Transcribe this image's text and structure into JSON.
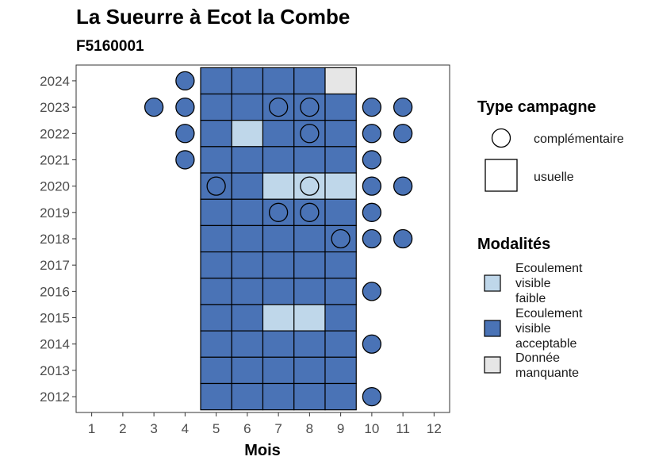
{
  "chart_data": {
    "type": "heatmap",
    "title": "La Sueurre à Ecot la Combe",
    "subtitle": "F5160001",
    "xlabel": "Mois",
    "ylabel": "",
    "x_ticks": [
      1,
      2,
      3,
      4,
      5,
      6,
      7,
      8,
      9,
      10,
      11,
      12
    ],
    "y_ticks": [
      2012,
      2013,
      2014,
      2015,
      2016,
      2017,
      2018,
      2019,
      2020,
      2021,
      2022,
      2023,
      2024
    ],
    "xlim": [
      0.5,
      12.5
    ],
    "ylim": [
      2011.4,
      2024.6
    ],
    "colors": {
      "Ecoulement visible faible": "#bfd7ea",
      "Ecoulement visible acceptable": "#4a73b6",
      "Donnée manquante": "#e6e6e6"
    },
    "usuelle_cells": [
      {
        "year": 2024,
        "month": 5,
        "mod": "Ecoulement visible acceptable"
      },
      {
        "year": 2024,
        "month": 6,
        "mod": "Ecoulement visible acceptable"
      },
      {
        "year": 2024,
        "month": 7,
        "mod": "Ecoulement visible acceptable"
      },
      {
        "year": 2024,
        "month": 8,
        "mod": "Ecoulement visible acceptable"
      },
      {
        "year": 2024,
        "month": 9,
        "mod": "Donnée manquante"
      },
      {
        "year": 2023,
        "month": 5,
        "mod": "Ecoulement visible acceptable"
      },
      {
        "year": 2023,
        "month": 6,
        "mod": "Ecoulement visible acceptable"
      },
      {
        "year": 2023,
        "month": 7,
        "mod": "Ecoulement visible acceptable"
      },
      {
        "year": 2023,
        "month": 8,
        "mod": "Ecoulement visible acceptable"
      },
      {
        "year": 2023,
        "month": 9,
        "mod": "Ecoulement visible acceptable"
      },
      {
        "year": 2022,
        "month": 5,
        "mod": "Ecoulement visible acceptable"
      },
      {
        "year": 2022,
        "month": 6,
        "mod": "Ecoulement visible faible"
      },
      {
        "year": 2022,
        "month": 7,
        "mod": "Ecoulement visible acceptable"
      },
      {
        "year": 2022,
        "month": 8,
        "mod": "Ecoulement visible acceptable"
      },
      {
        "year": 2022,
        "month": 9,
        "mod": "Ecoulement visible acceptable"
      },
      {
        "year": 2021,
        "month": 5,
        "mod": "Ecoulement visible acceptable"
      },
      {
        "year": 2021,
        "month": 6,
        "mod": "Ecoulement visible acceptable"
      },
      {
        "year": 2021,
        "month": 7,
        "mod": "Ecoulement visible acceptable"
      },
      {
        "year": 2021,
        "month": 8,
        "mod": "Ecoulement visible acceptable"
      },
      {
        "year": 2021,
        "month": 9,
        "mod": "Ecoulement visible acceptable"
      },
      {
        "year": 2020,
        "month": 5,
        "mod": "Ecoulement visible acceptable"
      },
      {
        "year": 2020,
        "month": 6,
        "mod": "Ecoulement visible acceptable"
      },
      {
        "year": 2020,
        "month": 7,
        "mod": "Ecoulement visible faible"
      },
      {
        "year": 2020,
        "month": 8,
        "mod": "Ecoulement visible faible"
      },
      {
        "year": 2020,
        "month": 9,
        "mod": "Ecoulement visible faible"
      },
      {
        "year": 2019,
        "month": 5,
        "mod": "Ecoulement visible acceptable"
      },
      {
        "year": 2019,
        "month": 6,
        "mod": "Ecoulement visible acceptable"
      },
      {
        "year": 2019,
        "month": 7,
        "mod": "Ecoulement visible acceptable"
      },
      {
        "year": 2019,
        "month": 8,
        "mod": "Ecoulement visible acceptable"
      },
      {
        "year": 2019,
        "month": 9,
        "mod": "Ecoulement visible acceptable"
      },
      {
        "year": 2018,
        "month": 5,
        "mod": "Ecoulement visible acceptable"
      },
      {
        "year": 2018,
        "month": 6,
        "mod": "Ecoulement visible acceptable"
      },
      {
        "year": 2018,
        "month": 7,
        "mod": "Ecoulement visible acceptable"
      },
      {
        "year": 2018,
        "month": 8,
        "mod": "Ecoulement visible acceptable"
      },
      {
        "year": 2018,
        "month": 9,
        "mod": "Ecoulement visible acceptable"
      },
      {
        "year": 2017,
        "month": 5,
        "mod": "Ecoulement visible acceptable"
      },
      {
        "year": 2017,
        "month": 6,
        "mod": "Ecoulement visible acceptable"
      },
      {
        "year": 2017,
        "month": 7,
        "mod": "Ecoulement visible acceptable"
      },
      {
        "year": 2017,
        "month": 8,
        "mod": "Ecoulement visible acceptable"
      },
      {
        "year": 2017,
        "month": 9,
        "mod": "Ecoulement visible acceptable"
      },
      {
        "year": 2016,
        "month": 5,
        "mod": "Ecoulement visible acceptable"
      },
      {
        "year": 2016,
        "month": 6,
        "mod": "Ecoulement visible acceptable"
      },
      {
        "year": 2016,
        "month": 7,
        "mod": "Ecoulement visible acceptable"
      },
      {
        "year": 2016,
        "month": 8,
        "mod": "Ecoulement visible acceptable"
      },
      {
        "year": 2016,
        "month": 9,
        "mod": "Ecoulement visible acceptable"
      },
      {
        "year": 2015,
        "month": 5,
        "mod": "Ecoulement visible acceptable"
      },
      {
        "year": 2015,
        "month": 6,
        "mod": "Ecoulement visible acceptable"
      },
      {
        "year": 2015,
        "month": 7,
        "mod": "Ecoulement visible faible"
      },
      {
        "year": 2015,
        "month": 8,
        "mod": "Ecoulement visible faible"
      },
      {
        "year": 2015,
        "month": 9,
        "mod": "Ecoulement visible acceptable"
      },
      {
        "year": 2014,
        "month": 5,
        "mod": "Ecoulement visible acceptable"
      },
      {
        "year": 2014,
        "month": 6,
        "mod": "Ecoulement visible acceptable"
      },
      {
        "year": 2014,
        "month": 7,
        "mod": "Ecoulement visible acceptable"
      },
      {
        "year": 2014,
        "month": 8,
        "mod": "Ecoulement visible acceptable"
      },
      {
        "year": 2014,
        "month": 9,
        "mod": "Ecoulement visible acceptable"
      },
      {
        "year": 2013,
        "month": 5,
        "mod": "Ecoulement visible acceptable"
      },
      {
        "year": 2013,
        "month": 6,
        "mod": "Ecoulement visible acceptable"
      },
      {
        "year": 2013,
        "month": 7,
        "mod": "Ecoulement visible acceptable"
      },
      {
        "year": 2013,
        "month": 8,
        "mod": "Ecoulement visible acceptable"
      },
      {
        "year": 2013,
        "month": 9,
        "mod": "Ecoulement visible acceptable"
      },
      {
        "year": 2012,
        "month": 5,
        "mod": "Ecoulement visible acceptable"
      },
      {
        "year": 2012,
        "month": 6,
        "mod": "Ecoulement visible acceptable"
      },
      {
        "year": 2012,
        "month": 7,
        "mod": "Ecoulement visible acceptable"
      },
      {
        "year": 2012,
        "month": 8,
        "mod": "Ecoulement visible acceptable"
      },
      {
        "year": 2012,
        "month": 9,
        "mod": "Ecoulement visible acceptable"
      }
    ],
    "complementaire_points": [
      {
        "year": 2024,
        "month": 4,
        "mod": "Ecoulement visible acceptable"
      },
      {
        "year": 2023,
        "month": 3,
        "mod": "Ecoulement visible acceptable"
      },
      {
        "year": 2023,
        "month": 4,
        "mod": "Ecoulement visible acceptable"
      },
      {
        "year": 2023,
        "month": 7,
        "mod": "Ecoulement visible acceptable"
      },
      {
        "year": 2023,
        "month": 8,
        "mod": "Ecoulement visible acceptable"
      },
      {
        "year": 2023,
        "month": 10,
        "mod": "Ecoulement visible acceptable"
      },
      {
        "year": 2023,
        "month": 11,
        "mod": "Ecoulement visible acceptable"
      },
      {
        "year": 2022,
        "month": 4,
        "mod": "Ecoulement visible acceptable"
      },
      {
        "year": 2022,
        "month": 8,
        "mod": "Ecoulement visible acceptable"
      },
      {
        "year": 2022,
        "month": 10,
        "mod": "Ecoulement visible acceptable"
      },
      {
        "year": 2022,
        "month": 11,
        "mod": "Ecoulement visible acceptable"
      },
      {
        "year": 2021,
        "month": 4,
        "mod": "Ecoulement visible acceptable"
      },
      {
        "year": 2021,
        "month": 10,
        "mod": "Ecoulement visible acceptable"
      },
      {
        "year": 2020,
        "month": 5,
        "mod": "Ecoulement visible acceptable"
      },
      {
        "year": 2020,
        "month": 8,
        "mod": "Ecoulement visible faible"
      },
      {
        "year": 2020,
        "month": 10,
        "mod": "Ecoulement visible acceptable"
      },
      {
        "year": 2020,
        "month": 11,
        "mod": "Ecoulement visible acceptable"
      },
      {
        "year": 2019,
        "month": 7,
        "mod": "Ecoulement visible acceptable"
      },
      {
        "year": 2019,
        "month": 8,
        "mod": "Ecoulement visible acceptable"
      },
      {
        "year": 2019,
        "month": 10,
        "mod": "Ecoulement visible acceptable"
      },
      {
        "year": 2018,
        "month": 9,
        "mod": "Ecoulement visible acceptable"
      },
      {
        "year": 2018,
        "month": 10,
        "mod": "Ecoulement visible acceptable"
      },
      {
        "year": 2018,
        "month": 11,
        "mod": "Ecoulement visible acceptable"
      },
      {
        "year": 2016,
        "month": 10,
        "mod": "Ecoulement visible acceptable"
      },
      {
        "year": 2014,
        "month": 10,
        "mod": "Ecoulement visible acceptable"
      },
      {
        "year": 2012,
        "month": 10,
        "mod": "Ecoulement visible acceptable"
      }
    ],
    "legend_type": {
      "title": "Type campagne",
      "items": [
        {
          "label": "complémentaire",
          "shape": "circle"
        },
        {
          "label": "usuelle",
          "shape": "square"
        }
      ]
    },
    "legend_modalites": {
      "title": "Modalités",
      "items": [
        {
          "lines": [
            "Ecoulement",
            "visible",
            "faible"
          ],
          "color": "#bfd7ea"
        },
        {
          "lines": [
            "Ecoulement",
            "visible",
            "acceptable"
          ],
          "color": "#4a73b6"
        },
        {
          "lines": [
            "Donnée",
            "manquante"
          ],
          "color": "#e6e6e6"
        }
      ]
    }
  }
}
